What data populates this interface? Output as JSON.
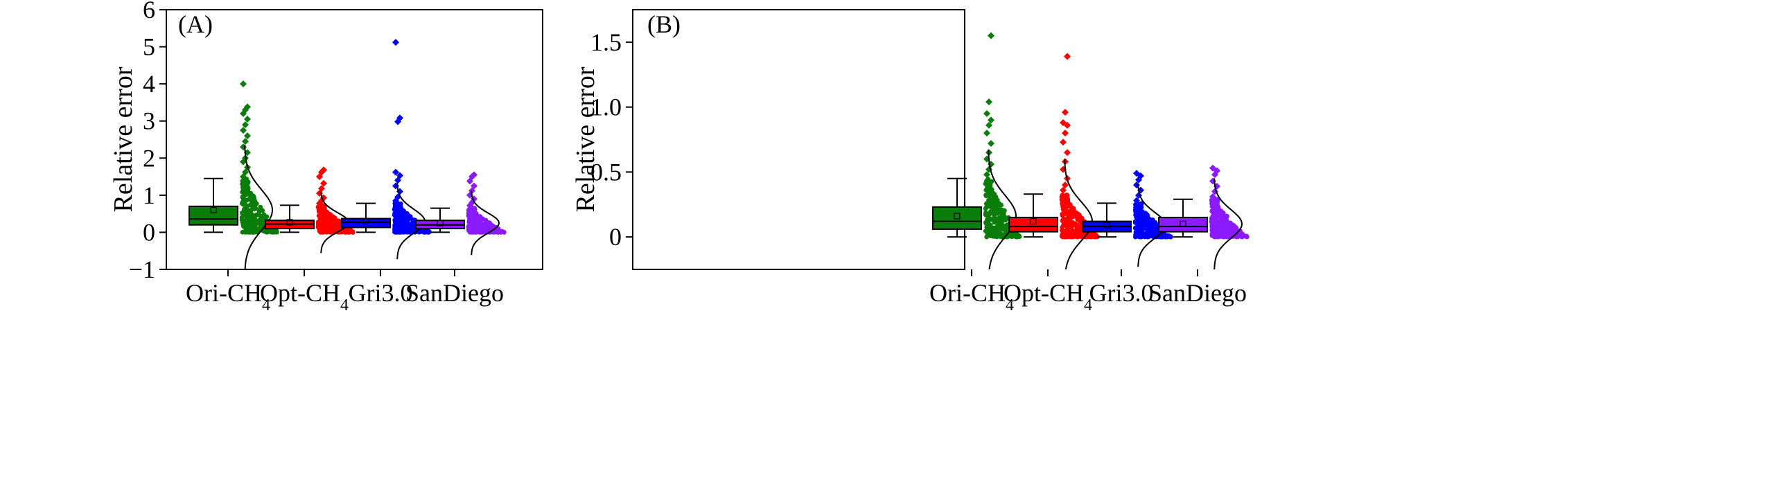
{
  "colors": {
    "Ori-CH4": "#0a7d0a",
    "Opt-CH4": "#ff0000",
    "Gri3.0": "#0000ff",
    "SanDiego": "#8c1aff",
    "axis": "#000000"
  },
  "chart_data": [
    {
      "type": "box",
      "panel_label": "(A)",
      "ylabel": "Relative error",
      "xlabel": "",
      "ylim": [
        -1,
        6
      ],
      "yticks": [
        -1,
        0,
        1,
        2,
        3,
        4,
        5,
        6
      ],
      "ytick_labels": [
        "−1",
        "0",
        "1",
        "2",
        "3",
        "4",
        "5",
        "6"
      ],
      "categories": [
        {
          "name": "Ori-CH",
          "sub": "4"
        },
        {
          "name": "Opt-CH",
          "sub": "4"
        },
        {
          "name": "Gri3.0",
          "sub": ""
        },
        {
          "name": "SanDiego",
          "sub": ""
        }
      ],
      "series": [
        {
          "name": "Ori-CH4",
          "color_key": "Ori-CH4",
          "whisker_low": 0.0,
          "q1": 0.2,
          "median": 0.36,
          "mean": 0.6,
          "q3": 0.7,
          "whisker_high": 1.45,
          "outliers": [
            1.5,
            1.62,
            1.75,
            1.9,
            2.0,
            2.15,
            2.3,
            2.45,
            2.6,
            2.75,
            2.9,
            3.05,
            3.2,
            3.3,
            3.38,
            4.0
          ],
          "dist_mean": 0.6,
          "dist_sd": 0.55
        },
        {
          "name": "Opt-CH4",
          "color_key": "Opt-CH4",
          "whisker_low": 0.0,
          "q1": 0.1,
          "median": 0.22,
          "mean": 0.27,
          "q3": 0.32,
          "whisker_high": 0.73,
          "outliers": [
            0.78,
            0.85,
            0.93,
            1.05,
            1.18,
            1.32,
            1.5,
            1.62,
            1.68
          ],
          "dist_mean": 0.27,
          "dist_sd": 0.26
        },
        {
          "name": "Gri3.0",
          "color_key": "Gri3.0",
          "whisker_low": 0.0,
          "q1": 0.13,
          "median": 0.27,
          "mean": 0.3,
          "q3": 0.37,
          "whisker_high": 0.78,
          "outliers": [
            0.85,
            0.95,
            1.1,
            1.25,
            1.4,
            1.53,
            1.62,
            2.98,
            3.08,
            5.12
          ],
          "dist_mean": 0.3,
          "dist_sd": 0.32
        },
        {
          "name": "SanDiego",
          "color_key": "SanDiego",
          "whisker_low": 0.0,
          "q1": 0.1,
          "median": 0.2,
          "mean": 0.25,
          "q3": 0.32,
          "whisker_high": 0.65,
          "outliers": [
            0.72,
            0.8,
            0.9,
            1.0,
            1.12,
            1.25,
            1.38,
            1.5,
            1.55
          ],
          "dist_mean": 0.25,
          "dist_sd": 0.27
        }
      ]
    },
    {
      "type": "box",
      "panel_label": "(B)",
      "ylabel": "Relative error",
      "xlabel": "",
      "ylim": [
        -0.25,
        1.75
      ],
      "yticks": [
        0,
        0.5,
        1.0,
        1.5
      ],
      "ytick_labels": [
        "0",
        "0.5",
        "1.0",
        "1.5"
      ],
      "categories": [
        {
          "name": "Ori-CH",
          "sub": "4"
        },
        {
          "name": "Opt-CH",
          "sub": "4"
        },
        {
          "name": "Gri3.0",
          "sub": ""
        },
        {
          "name": "SanDiego",
          "sub": ""
        }
      ],
      "series": [
        {
          "name": "Ori-CH4",
          "color_key": "Ori-CH4",
          "whisker_low": 0.0,
          "q1": 0.06,
          "median": 0.12,
          "mean": 0.16,
          "q3": 0.23,
          "whisker_high": 0.45,
          "outliers": [
            0.48,
            0.52,
            0.56,
            0.6,
            0.65,
            0.72,
            0.8,
            0.86,
            0.9,
            0.95,
            1.04,
            1.55
          ],
          "dist_mean": 0.16,
          "dist_sd": 0.16
        },
        {
          "name": "Opt-CH4",
          "color_key": "Opt-CH4",
          "whisker_low": 0.0,
          "q1": 0.04,
          "median": 0.08,
          "mean": 0.12,
          "q3": 0.15,
          "whisker_high": 0.33,
          "outliers": [
            0.36,
            0.4,
            0.45,
            0.52,
            0.58,
            0.65,
            0.73,
            0.8,
            0.86,
            0.88,
            0.96,
            1.39
          ],
          "dist_mean": 0.12,
          "dist_sd": 0.15
        },
        {
          "name": "Gri3.0",
          "color_key": "Gri3.0",
          "whisker_low": 0.0,
          "q1": 0.04,
          "median": 0.08,
          "mean": 0.09,
          "q3": 0.12,
          "whisker_high": 0.26,
          "outliers": [
            0.28,
            0.32,
            0.36,
            0.4,
            0.44,
            0.47,
            0.49
          ],
          "dist_mean": 0.09,
          "dist_sd": 0.1
        },
        {
          "name": "SanDiego",
          "color_key": "SanDiego",
          "whisker_low": 0.0,
          "q1": 0.04,
          "median": 0.08,
          "mean": 0.1,
          "q3": 0.15,
          "whisker_high": 0.29,
          "outliers": [
            0.31,
            0.35,
            0.39,
            0.43,
            0.48,
            0.51,
            0.53
          ],
          "dist_mean": 0.1,
          "dist_sd": 0.11
        }
      ]
    }
  ]
}
